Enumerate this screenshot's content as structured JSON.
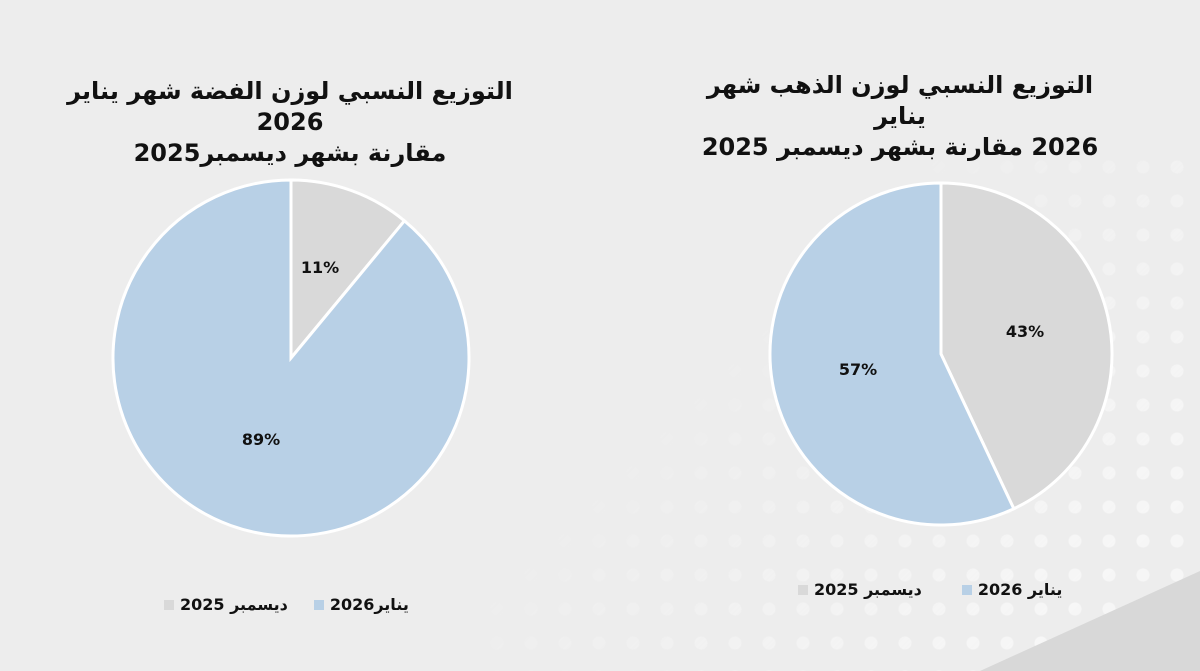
{
  "chart_data": [
    {
      "type": "pie",
      "title": "التوزيع النسبي لوزن الفضة شهر يناير 2026 مقارنة بشهر ديسمبر2025",
      "title_lines": [
        "التوزيع النسبي لوزن الفضة شهر يناير 2026",
        "مقارنة بشهر ديسمبر2025"
      ],
      "slices": [
        {
          "label": "ديسمبر 2025",
          "value": 11,
          "text": "11%",
          "color": "#d9d9d9"
        },
        {
          "label": "يناير2026",
          "value": 89,
          "text": "89%",
          "color": "#b8d0e6"
        }
      ]
    },
    {
      "type": "pie",
      "title": "التوزيع النسبي لوزن الذهب شهر يناير 2026 مقارنة بشهر ديسمبر 2025",
      "title_lines": [
        "التوزيع النسبي لوزن الذهب شهر يناير",
        "2026 مقارنة بشهر ديسمبر 2025"
      ],
      "slices": [
        {
          "label": "ديسمبر 2025",
          "value": 43,
          "text": "43%",
          "color": "#d9d9d9"
        },
        {
          "label": "يناير 2026",
          "value": 57,
          "text": "57%",
          "color": "#b8d0e6"
        }
      ]
    }
  ]
}
